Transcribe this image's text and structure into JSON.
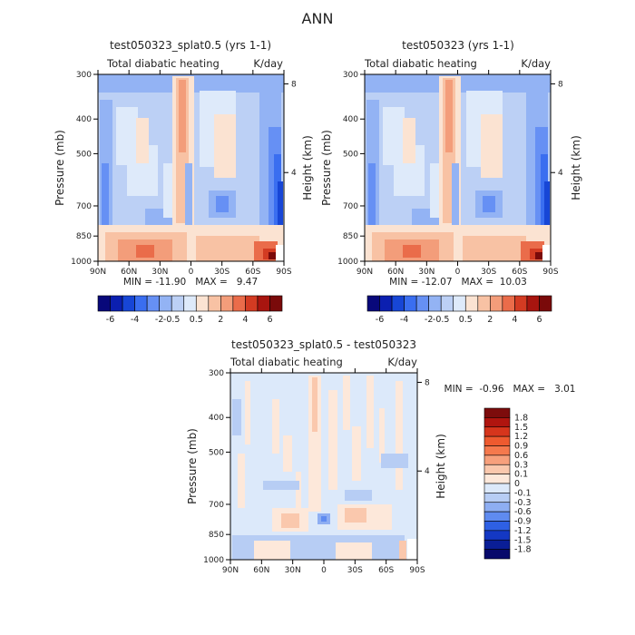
{
  "page_title": "ANN",
  "chart_data": [
    {
      "type": "heatmap",
      "title": "test050323_splat0.5 (yrs 1-1)",
      "subtitle_left": "Total diabatic heating",
      "subtitle_right": "K/day",
      "ylabel": "Pressure (mb)",
      "ylabel_right": "Height (km)",
      "x_ticks": [
        "90N",
        "60N",
        "30N",
        "0",
        "30S",
        "60S",
        "90S"
      ],
      "y_ticks": [
        "300",
        "400",
        "500",
        "700",
        "850",
        "1000"
      ],
      "y_ticks_right": [
        "8",
        "4"
      ],
      "stats": "MIN = -11.90   MAX =   9.47",
      "colorbar_labels": [
        "-6",
        "-4",
        "-2",
        "-0.5",
        "0.5",
        "2",
        "4",
        "6"
      ]
    },
    {
      "type": "heatmap",
      "title": "test050323 (yrs 1-1)",
      "subtitle_left": "Total diabatic heating",
      "subtitle_right": "K/day",
      "ylabel": "Pressure (mb)",
      "ylabel_right": "Height (km)",
      "x_ticks": [
        "90N",
        "60N",
        "30N",
        "0",
        "30S",
        "60S",
        "90S"
      ],
      "y_ticks": [
        "300",
        "400",
        "500",
        "700",
        "850",
        "1000"
      ],
      "y_ticks_right": [
        "8",
        "4"
      ],
      "stats": "MIN = -12.07   MAX =  10.03",
      "colorbar_labels": [
        "-6",
        "-4",
        "-2",
        "-0.5",
        "0.5",
        "2",
        "4",
        "6"
      ]
    },
    {
      "type": "heatmap",
      "title": "test050323_splat0.5 - test050323",
      "subtitle_left": "Total diabatic heating",
      "subtitle_right": "K/day",
      "ylabel": "Pressure (mb)",
      "ylabel_right": "Height (km)",
      "x_ticks": [
        "90N",
        "60N",
        "30N",
        "0",
        "30S",
        "60S",
        "90S"
      ],
      "y_ticks": [
        "300",
        "400",
        "500",
        "700",
        "850",
        "1000"
      ],
      "y_ticks_right": [
        "8",
        "4"
      ],
      "stats": "MIN =  -0.96   MAX =   3.01",
      "colorbar_labels": [
        "1.8",
        "1.5",
        "1.2",
        "0.9",
        "0.6",
        "0.3",
        "0.1",
        "0",
        "-0.1",
        "-0.3",
        "-0.6",
        "-0.9",
        "-1.2",
        "-1.5",
        "-1.8"
      ]
    }
  ],
  "colors": {
    "levels_main": [
      "#08087a",
      "#0b1fb0",
      "#1746d6",
      "#3a6ef0",
      "#6690f4",
      "#93b3f4",
      "#bcd0f5",
      "#deeafa",
      "#fbe3d2",
      "#f8c2a4",
      "#f39d7a",
      "#ea6c4a",
      "#d33b22",
      "#a8150f",
      "#7a0a0a"
    ],
    "levels_diff": [
      "#7d0c0c",
      "#b0150f",
      "#d6351c",
      "#ee5a2f",
      "#f5794d",
      "#f7a07c",
      "#fac8ad",
      "#fde8da",
      "#dce9fa",
      "#b7cdf4",
      "#8eaef2",
      "#5f8bf0",
      "#2e60e4",
      "#1438c4",
      "#0a1e96",
      "#07096b"
    ]
  }
}
